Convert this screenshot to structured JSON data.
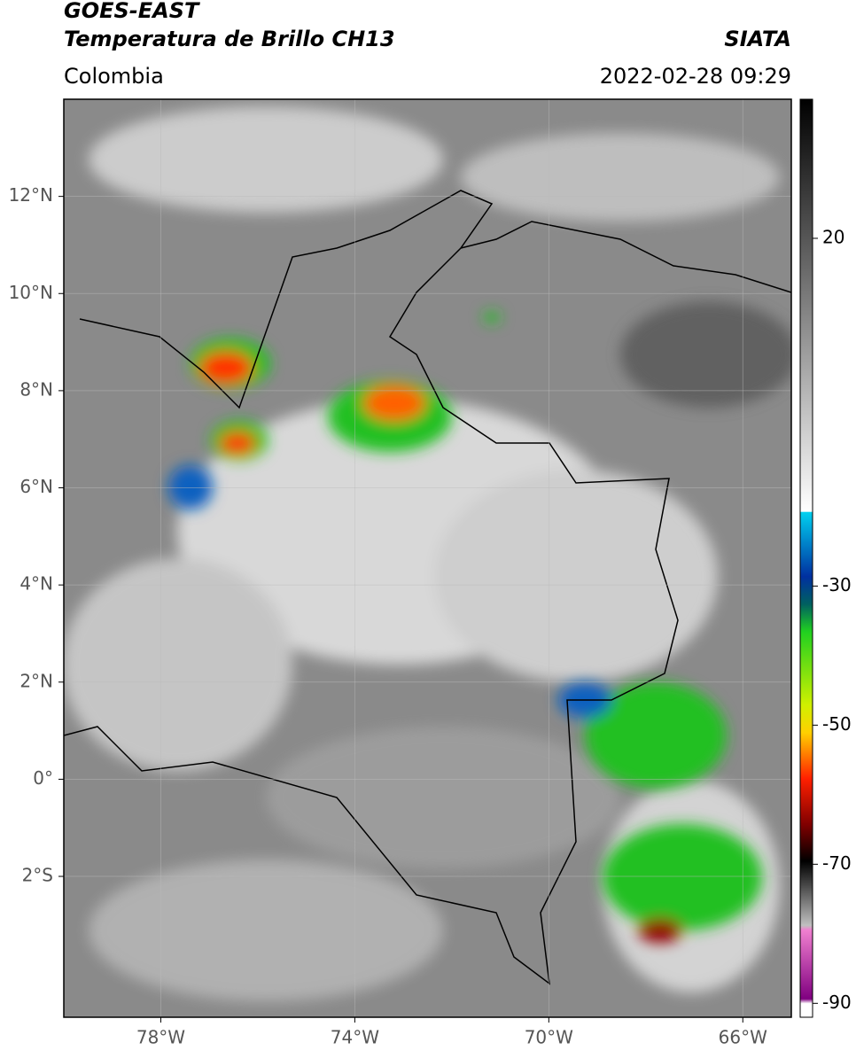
{
  "header": {
    "title": "GOES-EAST",
    "subtitle": "Temperatura de Brillo CH13",
    "source": "SIATA",
    "region": "Colombia",
    "datetime": "2022-02-28 09:29"
  },
  "map": {
    "xlim": [
      -80,
      -65
    ],
    "ylim": [
      -4.9,
      14
    ],
    "xticks": [
      {
        "value": -78,
        "label": "78°W"
      },
      {
        "value": -74,
        "label": "74°W"
      },
      {
        "value": -70,
        "label": "70°W"
      },
      {
        "value": -66,
        "label": "66°W"
      }
    ],
    "yticks": [
      {
        "value": 12,
        "label": "12°N"
      },
      {
        "value": 10,
        "label": "10°N"
      },
      {
        "value": 8,
        "label": "8°N"
      },
      {
        "value": 6,
        "label": "6°N"
      },
      {
        "value": 4,
        "label": "4°N"
      },
      {
        "value": 2,
        "label": "2°N"
      },
      {
        "value": 0,
        "label": "0°"
      },
      {
        "value": -2,
        "label": "2°S"
      }
    ],
    "grid": true
  },
  "colorbar": {
    "lim": [
      -92,
      40
    ],
    "ticks": [
      20,
      -30,
      -50,
      -70,
      -90
    ]
  }
}
